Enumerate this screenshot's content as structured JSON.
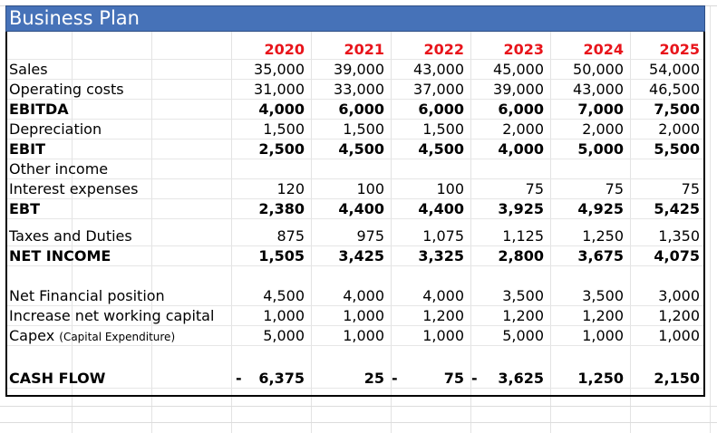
{
  "title": "Business Plan",
  "years": [
    "2020",
    "2021",
    "2022",
    "2023",
    "2024",
    "2025"
  ],
  "rows": {
    "sales": {
      "label": "Sales",
      "values": [
        "35,000",
        "39,000",
        "43,000",
        "45,000",
        "50,000",
        "54,000"
      ]
    },
    "operating_costs": {
      "label": "Operating costs",
      "values": [
        "31,000",
        "33,000",
        "37,000",
        "39,000",
        "43,000",
        "46,500"
      ]
    },
    "ebitda": {
      "label": "EBITDA",
      "values": [
        "4,000",
        "6,000",
        "6,000",
        "6,000",
        "7,000",
        "7,500"
      ]
    },
    "depreciation": {
      "label": "Depreciation",
      "values": [
        "1,500",
        "1,500",
        "1,500",
        "2,000",
        "2,000",
        "2,000"
      ]
    },
    "ebit": {
      "label": "EBIT",
      "values": [
        "2,500",
        "4,500",
        "4,500",
        "4,000",
        "5,000",
        "5,500"
      ]
    },
    "other_income": {
      "label": "Other income"
    },
    "interest_expenses": {
      "label": "Interest expenses",
      "values": [
        "120",
        "100",
        "100",
        "75",
        "75",
        "75"
      ]
    },
    "ebt": {
      "label": "EBT",
      "values": [
        "2,380",
        "4,400",
        "4,400",
        "3,925",
        "4,925",
        "5,425"
      ]
    },
    "taxes": {
      "label": "Taxes and Duties",
      "values": [
        "875",
        "975",
        "1,075",
        "1,125",
        "1,250",
        "1,350"
      ]
    },
    "net_income": {
      "label": "NET INCOME",
      "values": [
        "1,505",
        "3,425",
        "3,325",
        "2,800",
        "3,675",
        "4,075"
      ]
    },
    "net_financial": {
      "label": "Net Financial position",
      "values": [
        "4,500",
        "4,000",
        "4,000",
        "3,500",
        "3,500",
        "3,000"
      ]
    },
    "nwc": {
      "label": "Increase net working capital",
      "values": [
        "1,000",
        "1,000",
        "1,200",
        "1,200",
        "1,200",
        "1,200"
      ]
    },
    "capex": {
      "label": "Capex",
      "label_note": "(Capital Expenditure)",
      "values": [
        "5,000",
        "1,000",
        "1,000",
        "5,000",
        "1,000",
        "1,000"
      ]
    },
    "cash_flow": {
      "label": "CASH FLOW",
      "values": [
        "6,375",
        "25",
        "75",
        "3,625",
        "1,250",
        "2,150"
      ],
      "neg_sign": "-"
    }
  }
}
